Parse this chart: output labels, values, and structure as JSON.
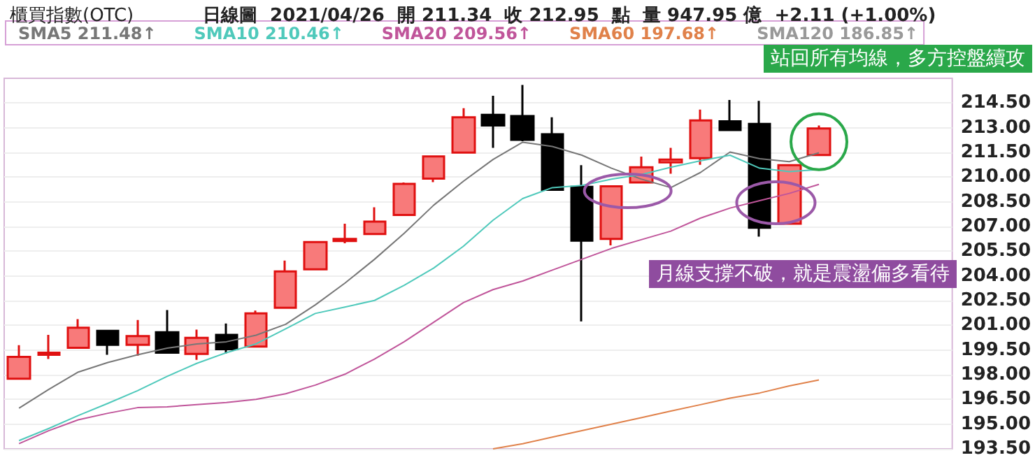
{
  "chart_data": {
    "type": "candlestick",
    "title": "櫃買指數(OTC)",
    "subtitle": "日線圖  2021/04/26  開 211.34  收 212.95  點  量 947.95 億  +2.11 (+1.00%)",
    "categories": [
      null,
      null,
      null,
      null,
      null,
      null,
      null,
      null,
      null,
      null,
      null,
      null,
      null,
      null,
      null,
      null,
      null,
      null,
      null,
      null,
      null,
      null,
      null,
      null,
      null,
      null,
      null,
      null,
      null,
      null,
      null,
      null
    ],
    "ohlc": [
      [
        197.76,
        199.79,
        197.76,
        199.08
      ],
      [
        199.21,
        200.42,
        198.95,
        199.34
      ],
      [
        199.63,
        201.37,
        199.63,
        200.85
      ],
      [
        200.66,
        200.66,
        199.21,
        199.82
      ],
      [
        199.82,
        201.32,
        199.16,
        200.35
      ],
      [
        200.58,
        201.93,
        199.34,
        199.34
      ],
      [
        199.26,
        200.74,
        198.9,
        200.24
      ],
      [
        200.42,
        201.11,
        199.29,
        199.55
      ],
      [
        199.71,
        201.9,
        199.71,
        201.72
      ],
      [
        202.06,
        204.93,
        202.06,
        204.27
      ],
      [
        204.4,
        206.06,
        204.4,
        206.06
      ],
      [
        206.12,
        207.17,
        205.98,
        206.25
      ],
      [
        206.54,
        208.17,
        206.54,
        207.3
      ],
      [
        207.7,
        209.67,
        207.7,
        209.59
      ],
      [
        209.91,
        211.26,
        209.7,
        211.26
      ],
      [
        211.49,
        214.18,
        211.49,
        213.63
      ],
      [
        213.78,
        214.94,
        211.78,
        213.13
      ],
      [
        213.71,
        215.6,
        212.18,
        212.26
      ],
      [
        212.6,
        213.63,
        209.23,
        209.23
      ],
      [
        209.41,
        210.73,
        201.24,
        206.14
      ],
      [
        206.25,
        209.44,
        205.85,
        209.44
      ],
      [
        209.67,
        211.25,
        209.67,
        210.6
      ],
      [
        210.89,
        211.78,
        210.2,
        211.07
      ],
      [
        211.15,
        214.1,
        210.75,
        213.44
      ],
      [
        213.39,
        214.68,
        212.86,
        212.86
      ],
      [
        213.23,
        214.63,
        206.38,
        206.93
      ],
      [
        207.17,
        210.73,
        207.17,
        210.73
      ],
      [
        211.34,
        213.13,
        211.34,
        212.95
      ],
      null,
      null,
      null,
      null
    ],
    "colors": [
      "#f87a7a",
      "#f87a7a",
      "#f87a7a",
      "#000000",
      "#f87a7a",
      "#000000",
      "#f87a7a",
      "#000000",
      "#f87a7a",
      "#f87a7a",
      "#f87a7a",
      "#f87a7a",
      "#f87a7a",
      "#f87a7a",
      "#f87a7a",
      "#f87a7a",
      "#000000",
      "#000000",
      "#000000",
      "#000000",
      "#f87a7a",
      "#f87a7a",
      "#f87a7a",
      "#f87a7a",
      "#000000",
      "#000000",
      "#f87a7a",
      "#f87a7a",
      null,
      null,
      null,
      null
    ],
    "series": [
      {
        "name": "SMA5 211.48↑",
        "type": "line",
        "color": "#777777",
        "values": [
          195.97,
          197.1,
          198.16,
          198.74,
          199.21,
          199.61,
          199.87,
          200.0,
          200.4,
          201.06,
          202.24,
          203.56,
          205.01,
          206.59,
          208.3,
          209.75,
          211.07,
          212.12,
          211.86,
          211.33,
          210.54,
          209.88,
          209.36,
          210.28,
          211.52,
          211.12,
          210.94,
          211.48,
          null,
          null,
          null,
          null
        ]
      },
      {
        "name": "SMA10 210.46↑",
        "type": "line",
        "color": "#4fc9bb",
        "values": [
          194.0,
          194.73,
          195.52,
          196.26,
          197.03,
          197.9,
          198.69,
          199.34,
          199.87,
          200.79,
          201.72,
          202.11,
          202.51,
          203.43,
          204.48,
          205.8,
          207.38,
          208.7,
          209.36,
          209.49,
          209.88,
          210.15,
          210.6,
          210.99,
          211.33,
          210.54,
          210.33,
          210.46,
          null,
          null,
          null,
          null
        ]
      },
      {
        "name": "SMA20 209.56↑",
        "type": "line",
        "color": "#c0559a",
        "values": [
          193.81,
          194.6,
          195.26,
          195.66,
          196.0,
          196.05,
          196.18,
          196.31,
          196.5,
          196.84,
          197.37,
          198.03,
          198.95,
          200.0,
          201.19,
          202.38,
          203.17,
          203.69,
          204.35,
          205.01,
          205.67,
          206.2,
          206.72,
          207.51,
          208.12,
          208.57,
          209.01,
          209.56,
          null,
          null,
          null,
          null
        ]
      },
      {
        "name": "SMA60 197.68↑",
        "type": "line",
        "color": "#e0814a",
        "values": [
          null,
          null,
          null,
          null,
          null,
          null,
          null,
          null,
          null,
          null,
          null,
          null,
          null,
          null,
          null,
          null,
          193.5,
          193.81,
          194.21,
          194.6,
          195.0,
          195.39,
          195.79,
          196.18,
          196.58,
          196.89,
          197.32,
          197.68,
          null,
          null,
          null,
          null
        ]
      },
      {
        "name": "SMA120 186.85↑",
        "type": "line",
        "color": "#999999",
        "values": [
          null,
          null,
          null,
          null,
          null,
          null,
          null,
          null,
          null,
          null,
          null,
          null,
          null,
          null,
          null,
          null,
          null,
          null,
          null,
          null,
          null,
          null,
          null,
          null,
          null,
          null,
          null,
          null,
          null,
          null,
          null,
          null
        ]
      }
    ],
    "marker": "none",
    "legend": "top left",
    "grid": "y",
    "ylim": [
      193.5,
      216
    ],
    "yticks": [
      {
        "value": 193.5,
        "label": "193.50"
      },
      {
        "value": 195,
        "label": "195.00"
      },
      {
        "value": 196.5,
        "label": "196.50"
      },
      {
        "value": 198,
        "label": "198.00"
      },
      {
        "value": 199.5,
        "label": "199.50"
      },
      {
        "value": 201,
        "label": "201.00"
      },
      {
        "value": 202.5,
        "label": "202.50"
      },
      {
        "value": 204,
        "label": "204.00"
      },
      {
        "value": 205.5,
        "label": "205.50"
      },
      {
        "value": 207,
        "label": "207.00"
      },
      {
        "value": 208.5,
        "label": "208.50"
      },
      {
        "value": 210,
        "label": "210.00"
      },
      {
        "value": 211.5,
        "label": "211.50"
      },
      {
        "value": 213,
        "label": "213.00"
      },
      {
        "value": 214.5,
        "label": "214.50"
      }
    ],
    "annotations": [
      "站回所有均線，多方控盤續攻",
      "月線支撐不破，就是震盪偏多看待"
    ]
  }
}
